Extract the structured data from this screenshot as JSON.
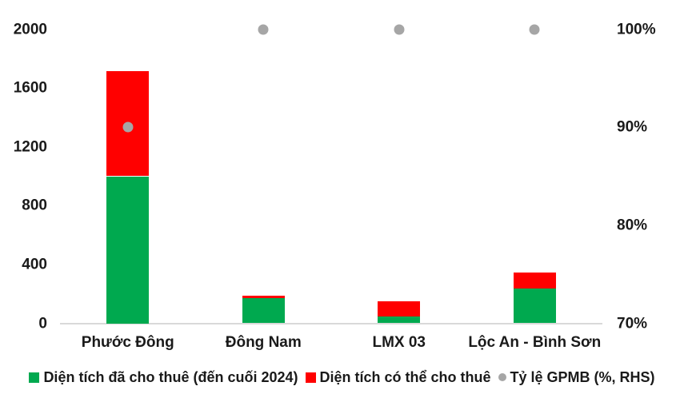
{
  "chart_data": {
    "type": "bar",
    "subtype": "stacked-bar-with-scatter",
    "title": "",
    "categories": [
      "Phước Đông",
      "Đông Nam",
      "LMX 03",
      "Lộc An - Bình Sơn"
    ],
    "series": [
      {
        "name": "Diện tích đã cho thuê (đến cuối 2024)",
        "type": "bar",
        "stack": "a",
        "axis": "left",
        "color": "#00A94F",
        "values": [
          1000,
          170,
          45,
          235
        ]
      },
      {
        "name": "Diện tích có thể cho thuê",
        "type": "bar",
        "stack": "a",
        "axis": "left",
        "color": "#FF0000",
        "values": [
          715,
          20,
          105,
          110
        ]
      },
      {
        "name": "Tỷ lệ GPMB (%, RHS)",
        "type": "scatter",
        "axis": "right",
        "color": "#A6A6A6",
        "values": [
          90,
          100,
          100,
          100
        ]
      }
    ],
    "left_axis": {
      "min": 0,
      "max": 2000,
      "tick_labels": [
        "0",
        "400",
        "800",
        "1200",
        "1600",
        "2000"
      ]
    },
    "right_axis": {
      "min": 70,
      "max": 100,
      "tick_labels": [
        "70%",
        "80%",
        "90%",
        "100%"
      ]
    },
    "grid": false,
    "legend_position": "bottom"
  },
  "colors": {
    "leased_green": "#00A94F",
    "leasable_red": "#FF0000",
    "gpmb_gray": "#A6A6A6",
    "axis_line": "#D9D9D9",
    "text": "#1A1A1A",
    "background": "#FFFFFF"
  }
}
